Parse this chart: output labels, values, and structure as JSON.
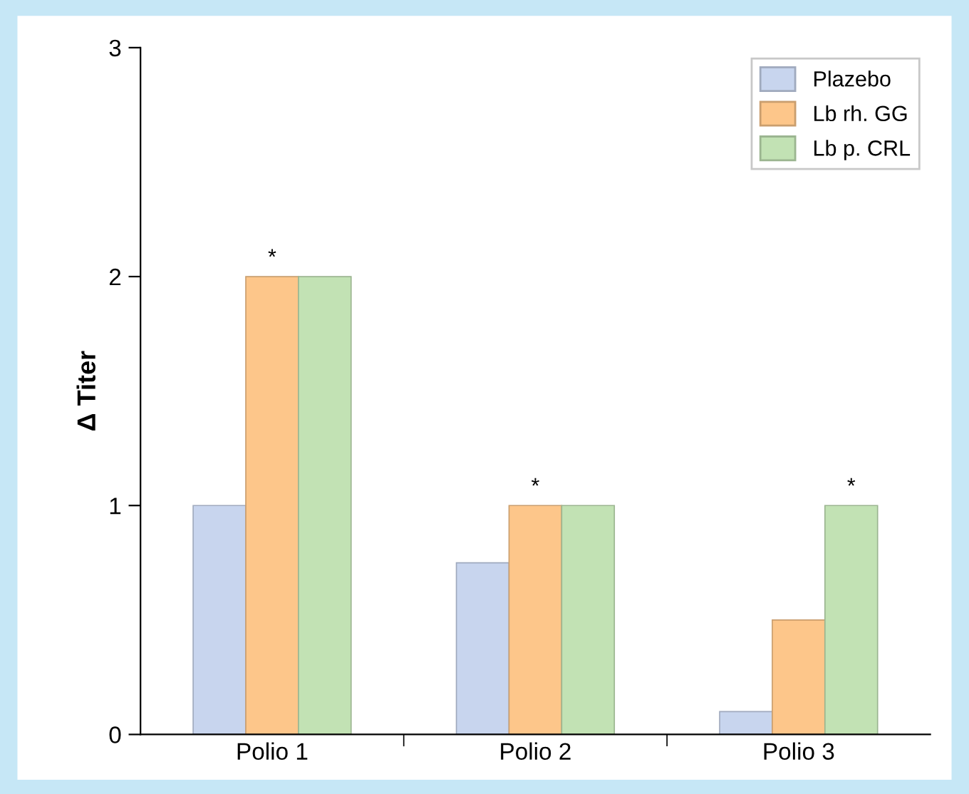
{
  "chart_data": {
    "type": "bar",
    "ylabel": "Δ Titer",
    "categories": [
      "Polio 1",
      "Polio 2",
      "Polio 3"
    ],
    "series": [
      {
        "name": "Plazebo",
        "color": "#c8d5ee",
        "values": [
          1,
          0.75,
          0.1
        ]
      },
      {
        "name": "Lb rh. GG",
        "color": "#fdc68a",
        "values": [
          2,
          1,
          0.5
        ],
        "value_labels": [
          "*",
          "*",
          null
        ]
      },
      {
        "name": "Lb p. CRL",
        "color": "#c2e2b4",
        "values": [
          2,
          1,
          1
        ],
        "value_labels": [
          null,
          null,
          "*"
        ]
      }
    ],
    "ylim": [
      0,
      3
    ],
    "yticks": [
      0,
      1,
      2,
      3
    ],
    "grid": false,
    "legend": "top right"
  }
}
